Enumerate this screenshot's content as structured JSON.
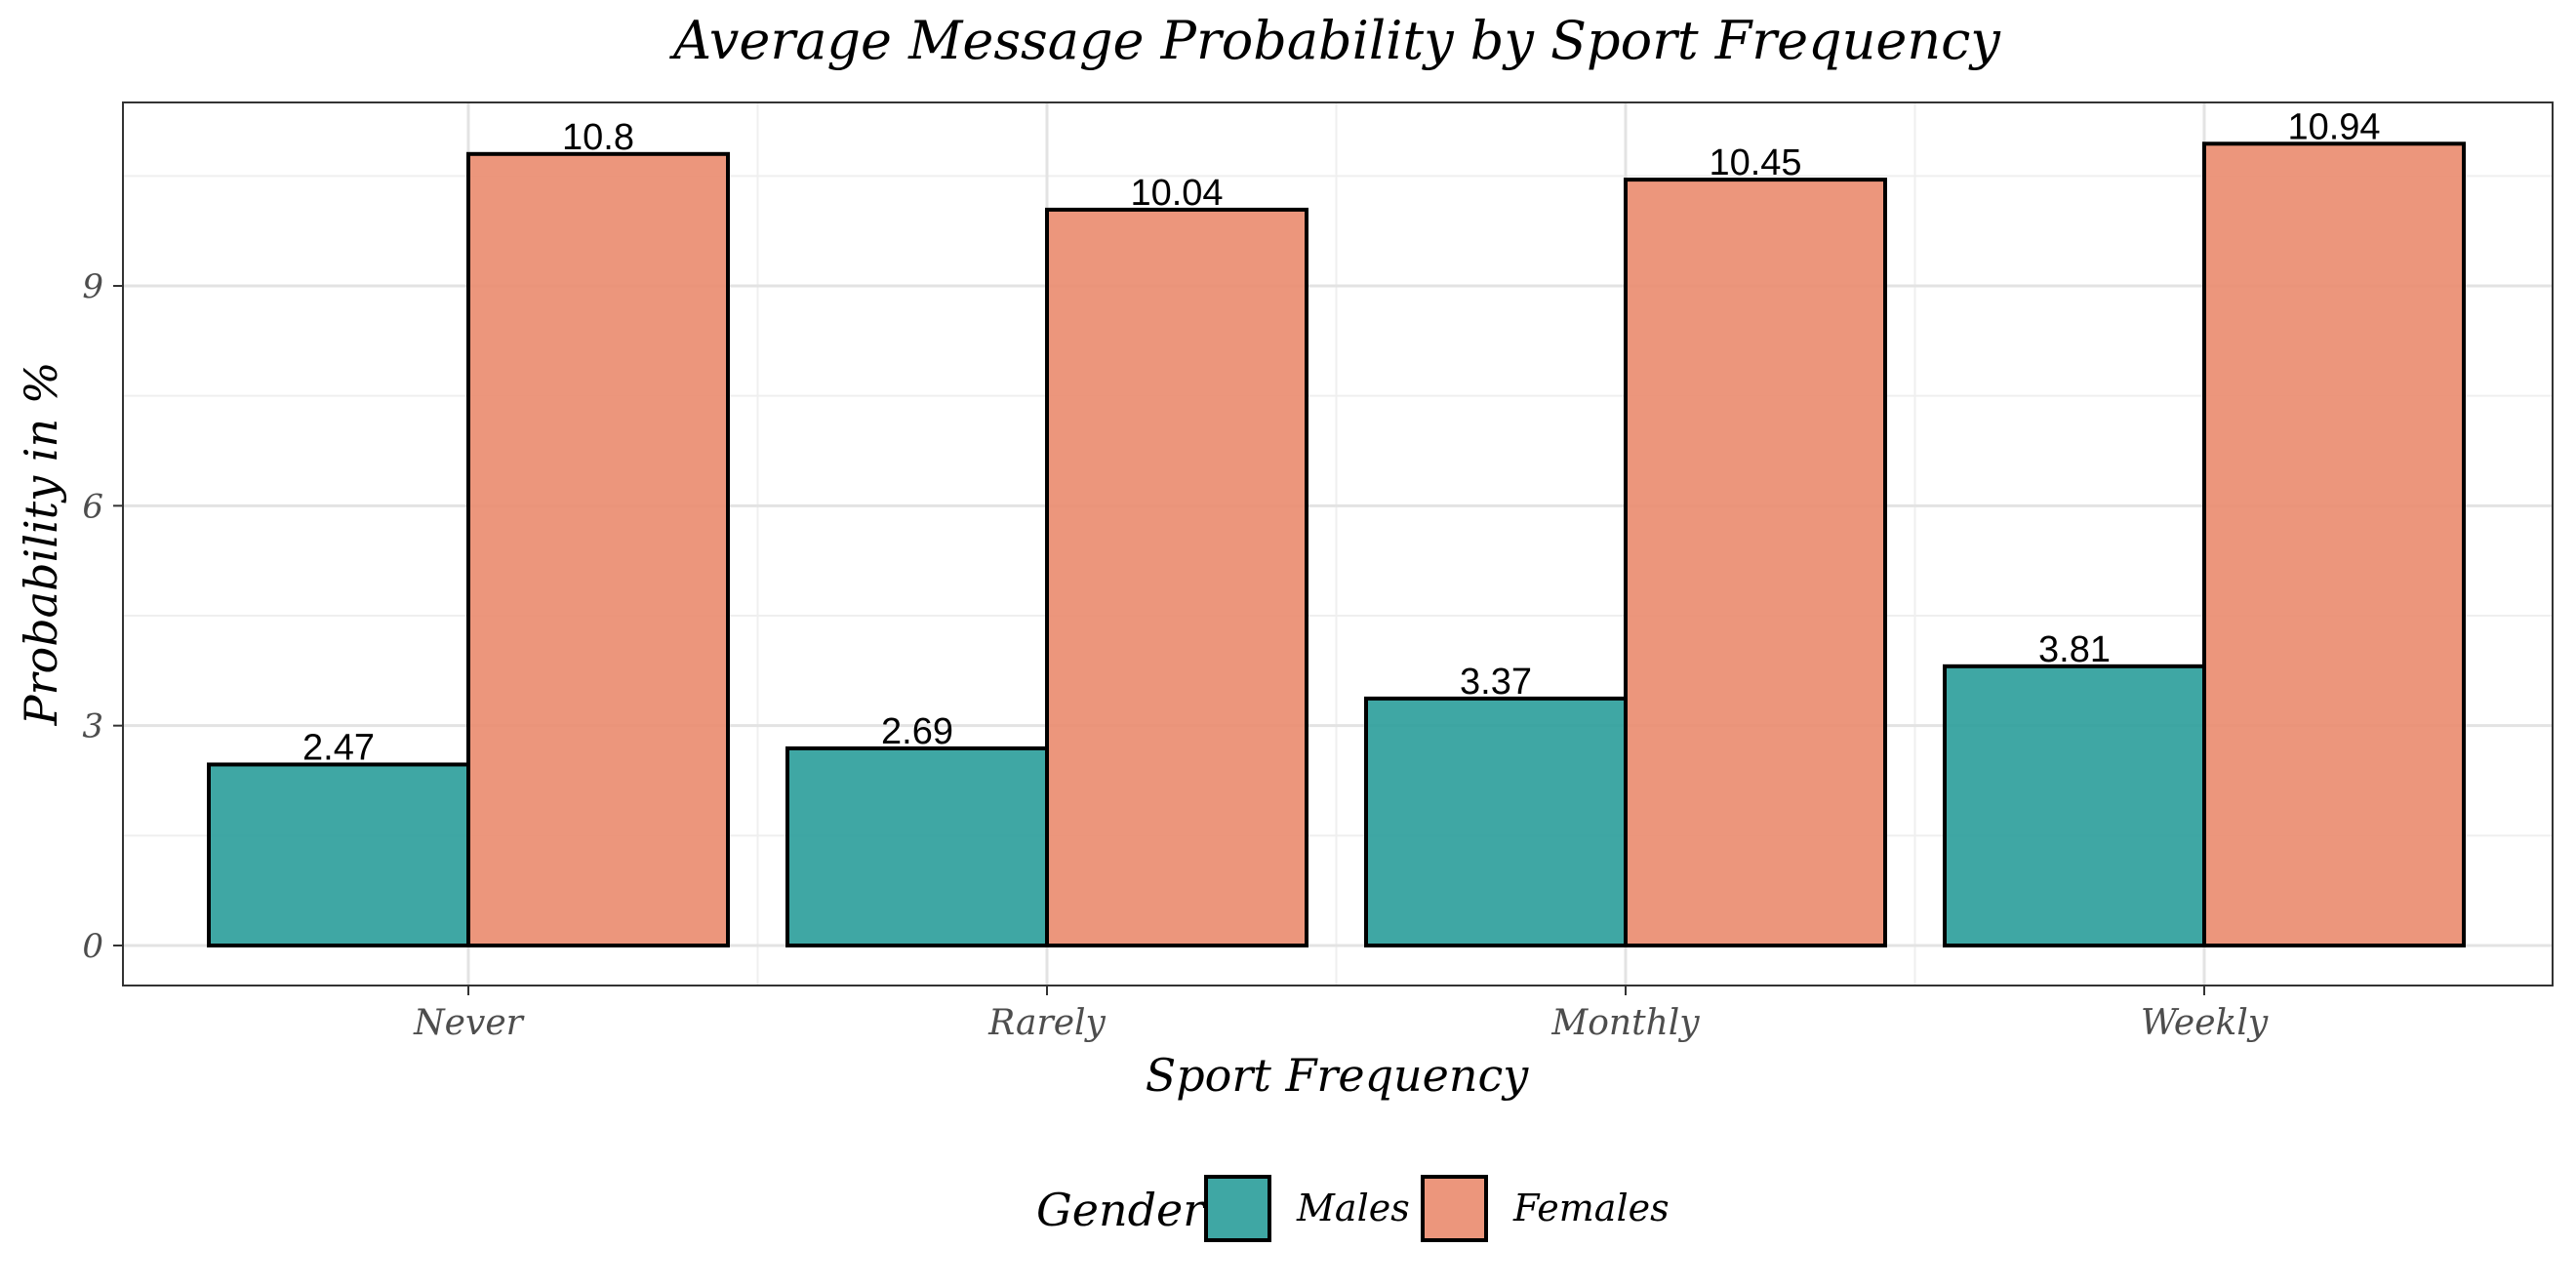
{
  "chart_data": {
    "type": "bar",
    "title": "Average Message Probability by Sport Frequency",
    "xlabel": "Sport Frequency",
    "ylabel": "Probability in %",
    "categories": [
      "Never",
      "Rarely",
      "Monthly",
      "Weekly"
    ],
    "series": [
      {
        "name": "Males",
        "color": "#2a9d9a",
        "values": [
          2.47,
          2.69,
          3.37,
          3.81
        ],
        "labels": [
          "2.47",
          "2.69",
          "3.37",
          "3.81"
        ]
      },
      {
        "name": "Females",
        "color": "#ea8b6e",
        "values": [
          10.8,
          10.04,
          10.45,
          10.94
        ],
        "labels": [
          "10.8",
          "10.04",
          "10.45",
          "10.94"
        ]
      }
    ],
    "yticks": [
      0,
      3,
      6,
      9
    ],
    "ytick_labels": [
      "0",
      "3",
      "6",
      "9"
    ],
    "ylim": [
      -0.54,
      11.5
    ],
    "grid": true,
    "legend": {
      "title": "Gender",
      "position": "bottom"
    }
  }
}
